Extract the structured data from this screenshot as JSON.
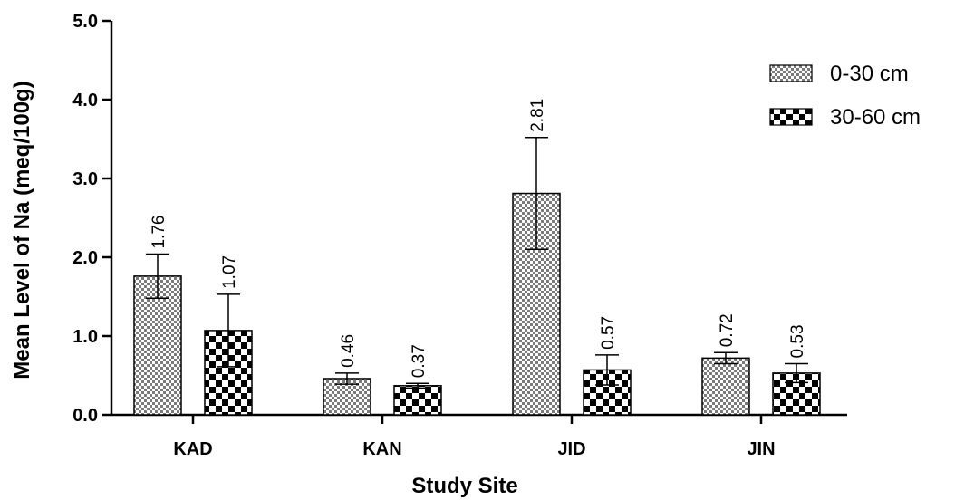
{
  "chart_data": {
    "type": "bar",
    "title": "",
    "xlabel": "Study Site",
    "ylabel": "Mean Level of Na (meq/100g)",
    "ylim": [
      0,
      5
    ],
    "yticks": [
      "0.0",
      "1.0",
      "2.0",
      "3.0",
      "4.0",
      "5.0"
    ],
    "categories": [
      "KAD",
      "KAN",
      "JID",
      "JIN"
    ],
    "series": [
      {
        "name": "0-30 cm",
        "values": [
          1.76,
          0.46,
          2.81,
          0.72
        ],
        "labels": [
          "1.76",
          "0.46",
          "2.81",
          "0.72"
        ],
        "error_upper": [
          2.04,
          0.53,
          3.52,
          0.79
        ],
        "error_lower": [
          1.48,
          0.39,
          2.1,
          0.65
        ],
        "pattern": "fine-checker"
      },
      {
        "name": "30-60 cm",
        "values": [
          1.07,
          0.37,
          0.57,
          0.53
        ],
        "labels": [
          "1.07",
          "0.37",
          "0.57",
          "0.53"
        ],
        "error_upper": [
          1.53,
          0.4,
          0.76,
          0.65
        ],
        "error_lower": [
          0.61,
          0.34,
          0.38,
          0.41
        ],
        "pattern": "coarse-checker"
      }
    ],
    "legend_position": "top-right",
    "grid": false
  }
}
